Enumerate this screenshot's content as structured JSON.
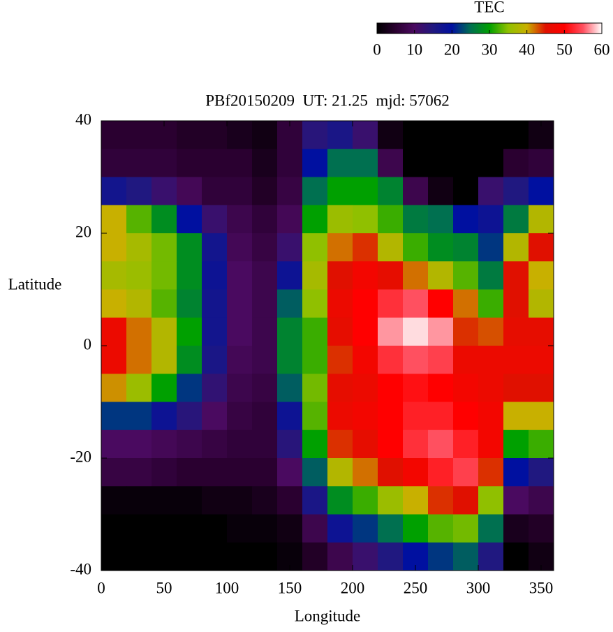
{
  "chart_data": {
    "type": "heatmap",
    "title": "PBf20150209  UT: 21.25  mjd: 57062",
    "xlabel": "Longitude",
    "ylabel": "Latitude",
    "x": [
      10,
      30,
      50,
      70,
      90,
      110,
      130,
      150,
      170,
      190,
      210,
      230,
      250,
      270,
      290,
      310,
      330,
      350
    ],
    "y": [
      37.5,
      32.5,
      27.5,
      22.5,
      17.5,
      12.5,
      7.5,
      2.5,
      -2.5,
      -7.5,
      -12.5,
      -17.5,
      -22.5,
      -27.5,
      -32.5,
      -37.5
    ],
    "values": [
      [
        5,
        5,
        5,
        4,
        4,
        3,
        2,
        6,
        14,
        16,
        12,
        2,
        0,
        0,
        0,
        0,
        0,
        2
      ],
      [
        6,
        6,
        6,
        5,
        5,
        5,
        3,
        6,
        20,
        25,
        25,
        8,
        0,
        0,
        0,
        0,
        5,
        6
      ],
      [
        17,
        15,
        12,
        9,
        6,
        6,
        4,
        7,
        25,
        30,
        30,
        27,
        8,
        2,
        0,
        12,
        15,
        20
      ],
      [
        40,
        33,
        28,
        20,
        12,
        8,
        6,
        9,
        30,
        36,
        35,
        32,
        26,
        25,
        20,
        18,
        26,
        38
      ],
      [
        40,
        37,
        34,
        28,
        17,
        9,
        7,
        12,
        35,
        42,
        44,
        38,
        32,
        28,
        27,
        22,
        38,
        45
      ],
      [
        37,
        36,
        34,
        28,
        18,
        10,
        8,
        18,
        37,
        45,
        48,
        46,
        42,
        38,
        33,
        26,
        45,
        40
      ],
      [
        40,
        38,
        33,
        27,
        17,
        10,
        8,
        24,
        35,
        47,
        50,
        53,
        55,
        50,
        42,
        32,
        45,
        38
      ],
      [
        47,
        42,
        38,
        30,
        17,
        10,
        8,
        27,
        32,
        46,
        50,
        57,
        59,
        57,
        44,
        43,
        46,
        46
      ],
      [
        47,
        42,
        38,
        28,
        16,
        9,
        8,
        27,
        32,
        44,
        48,
        53,
        55,
        54,
        47,
        47,
        47,
        47
      ],
      [
        41,
        36,
        30,
        22,
        13,
        8,
        7,
        24,
        34,
        46,
        47,
        50,
        51,
        50,
        48,
        47,
        45,
        45
      ],
      [
        22,
        22,
        18,
        14,
        10,
        7,
        6,
        18,
        33,
        47,
        48,
        50,
        52,
        52,
        50,
        48,
        40,
        40
      ],
      [
        10,
        10,
        9,
        8,
        7,
        6,
        6,
        14,
        30,
        44,
        46,
        50,
        53,
        55,
        52,
        48,
        30,
        32
      ],
      [
        7,
        7,
        6,
        5,
        5,
        5,
        5,
        10,
        24,
        38,
        42,
        45,
        48,
        52,
        54,
        44,
        20,
        15
      ],
      [
        1,
        1,
        1,
        1,
        2,
        2,
        3,
        5,
        16,
        28,
        32,
        36,
        40,
        44,
        45,
        35,
        10,
        8
      ],
      [
        0,
        0,
        0,
        0,
        0,
        1,
        1,
        2,
        8,
        18,
        22,
        25,
        30,
        33,
        34,
        25,
        3,
        4
      ],
      [
        0,
        0,
        0,
        0,
        0,
        0,
        0,
        1,
        4,
        8,
        12,
        15,
        20,
        22,
        24,
        15,
        0,
        2
      ]
    ],
    "xlim": [
      0,
      360
    ],
    "ylim": [
      -40,
      40
    ],
    "xticks": [
      0,
      50,
      100,
      150,
      200,
      250,
      300,
      350
    ],
    "yticks": [
      -40,
      -20,
      0,
      20,
      40
    ],
    "colorbar": {
      "label": "TEC",
      "clim": [
        0,
        60
      ],
      "ticks": [
        0,
        10,
        20,
        30,
        40,
        50,
        60
      ]
    },
    "colormap": [
      "#000000",
      "#2a0030",
      "#4a0a60",
      "#201880",
      "#0010a0",
      "#007050",
      "#00a000",
      "#90c000",
      "#c8b000",
      "#e01000",
      "#ff0000",
      "#ff5060",
      "#ffffff"
    ]
  }
}
